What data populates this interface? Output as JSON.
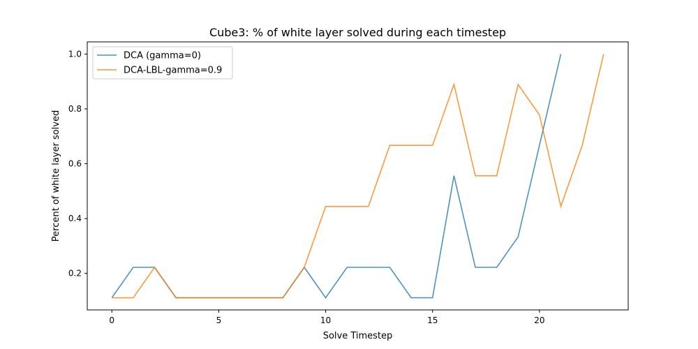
{
  "chart_data": {
    "type": "line",
    "title": "Cube3: % of white layer solved during each timestep",
    "xlabel": "Solve Timestep",
    "ylabel": "Percent of white layer solved",
    "xlim": [
      -1.15,
      24.15
    ],
    "ylim": [
      0.0667,
      1.0444
    ],
    "xticks": [
      0,
      5,
      10,
      15,
      20
    ],
    "yticks": [
      0.2,
      0.4,
      0.6,
      0.8,
      1.0
    ],
    "yticklabels": [
      "0.2",
      "0.4",
      "0.6",
      "0.8",
      "1.0"
    ],
    "grid": false,
    "legend_position": "upper-left",
    "series": [
      {
        "name": "DCA (gamma=0)",
        "color": "#1f77b4",
        "x": [
          0,
          1,
          2,
          3,
          4,
          5,
          6,
          7,
          8,
          9,
          10,
          11,
          12,
          13,
          14,
          15,
          16,
          17,
          18,
          19,
          20,
          21
        ],
        "values": [
          0.111,
          0.222,
          0.222,
          0.111,
          0.111,
          0.111,
          0.111,
          0.111,
          0.111,
          0.222,
          0.111,
          0.222,
          0.222,
          0.222,
          0.111,
          0.111,
          0.556,
          0.222,
          0.222,
          0.333,
          0.667,
          1.0
        ]
      },
      {
        "name": "DCA-LBL-gamma=0.9",
        "color": "#ff7f0e",
        "x": [
          0,
          1,
          2,
          3,
          4,
          5,
          6,
          7,
          8,
          9,
          10,
          11,
          12,
          13,
          14,
          15,
          16,
          17,
          18,
          19,
          20,
          21,
          22,
          23
        ],
        "values": [
          0.111,
          0.111,
          0.222,
          0.111,
          0.111,
          0.111,
          0.111,
          0.111,
          0.111,
          0.222,
          0.444,
          0.444,
          0.444,
          0.667,
          0.667,
          0.667,
          0.889,
          0.556,
          0.556,
          0.889,
          0.778,
          0.444,
          0.667,
          1.0
        ]
      }
    ]
  }
}
